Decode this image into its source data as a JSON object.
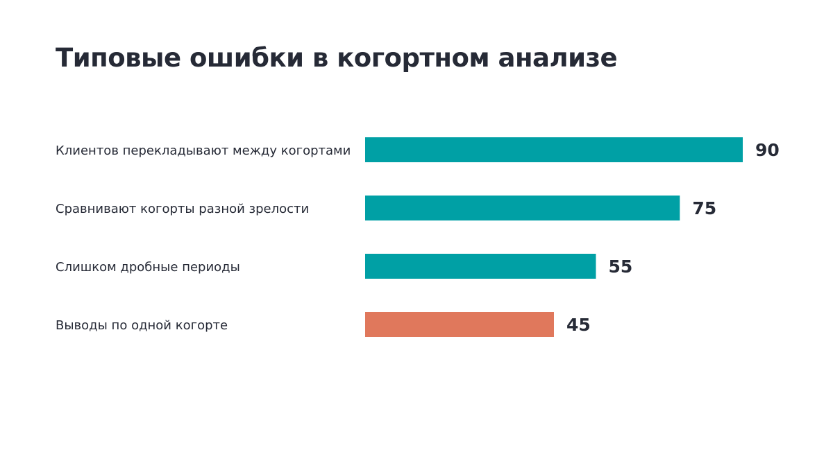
{
  "title": "Типовые ошибки в когортном анализе",
  "chart_data": {
    "type": "bar",
    "orientation": "horizontal",
    "title": "Типовые ошибки в когортном анализе",
    "xlabel": "",
    "ylabel": "",
    "xlim": [
      0,
      90
    ],
    "grid": false,
    "legend": "none",
    "categories": [
      "Клиентов перекладывают между когортами",
      "Сравнивают когорты разной зрелости",
      "Слишком дробные периоды",
      "Выводы по одной когорте"
    ],
    "values": [
      90,
      75,
      55,
      45
    ],
    "value_labels": [
      "90",
      "75",
      "55",
      "45"
    ],
    "colors": [
      "#00a0a5",
      "#00a0a5",
      "#00a0a5",
      "#e0785c"
    ]
  }
}
